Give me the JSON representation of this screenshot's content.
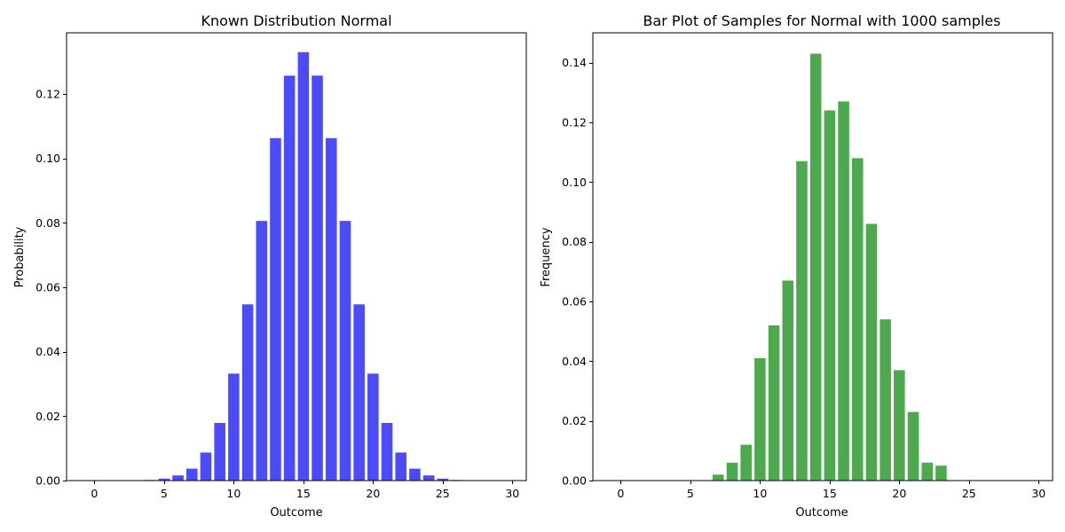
{
  "chart_data": [
    {
      "type": "bar",
      "title": "Known Distribution Normal",
      "xlabel": "Outcome",
      "ylabel": "Probability",
      "color": "#4b4bf9",
      "xlim": [
        -2,
        31
      ],
      "ylim": [
        0,
        0.139
      ],
      "xticks": [
        0,
        5,
        10,
        15,
        20,
        25,
        30
      ],
      "xtick_labels": [
        "0",
        "5",
        "10",
        "15",
        "20",
        "25",
        "30"
      ],
      "yticks": [
        0,
        0.02,
        0.04,
        0.06,
        0.08,
        0.1,
        0.12
      ],
      "ytick_labels": [
        "0.00",
        "0.02",
        "0.04",
        "0.06",
        "0.08",
        "0.10",
        "0.12"
      ],
      "grid": false,
      "x": [
        0,
        1,
        2,
        3,
        4,
        5,
        6,
        7,
        8,
        9,
        10,
        11,
        12,
        13,
        14,
        15,
        16,
        17,
        18,
        19,
        20,
        21,
        22,
        23,
        24,
        25,
        26,
        27,
        28,
        29
      ],
      "values": [
        0.0,
        0.0,
        0.0,
        0.0,
        0.0002,
        0.0006,
        0.0016,
        0.0037,
        0.0087,
        0.0179,
        0.0332,
        0.0547,
        0.0806,
        0.1063,
        0.1257,
        0.133,
        0.1257,
        0.1063,
        0.0806,
        0.0547,
        0.0332,
        0.0179,
        0.0087,
        0.0037,
        0.0016,
        0.0006,
        0.0002,
        0.0,
        0.0,
        0.0
      ]
    },
    {
      "type": "bar",
      "title": "Bar Plot of Samples for Normal with 1000 samples",
      "xlabel": "Outcome",
      "ylabel": "Frequency",
      "color": "#4ea84e",
      "xlim": [
        -2,
        31
      ],
      "ylim": [
        0,
        0.15
      ],
      "xticks": [
        0,
        5,
        10,
        15,
        20,
        25,
        30
      ],
      "xtick_labels": [
        "0",
        "5",
        "10",
        "15",
        "20",
        "25",
        "30"
      ],
      "yticks": [
        0,
        0.02,
        0.04,
        0.06,
        0.08,
        0.1,
        0.12,
        0.14
      ],
      "ytick_labels": [
        "0.00",
        "0.02",
        "0.04",
        "0.06",
        "0.08",
        "0.10",
        "0.12",
        "0.14"
      ],
      "grid": false,
      "x": [
        7,
        8,
        9,
        10,
        11,
        12,
        13,
        14,
        15,
        16,
        17,
        18,
        19,
        20,
        21,
        22,
        23
      ],
      "values": [
        0.002,
        0.006,
        0.012,
        0.041,
        0.052,
        0.067,
        0.107,
        0.143,
        0.124,
        0.127,
        0.108,
        0.086,
        0.054,
        0.037,
        0.023,
        0.006,
        0.005
      ]
    }
  ]
}
